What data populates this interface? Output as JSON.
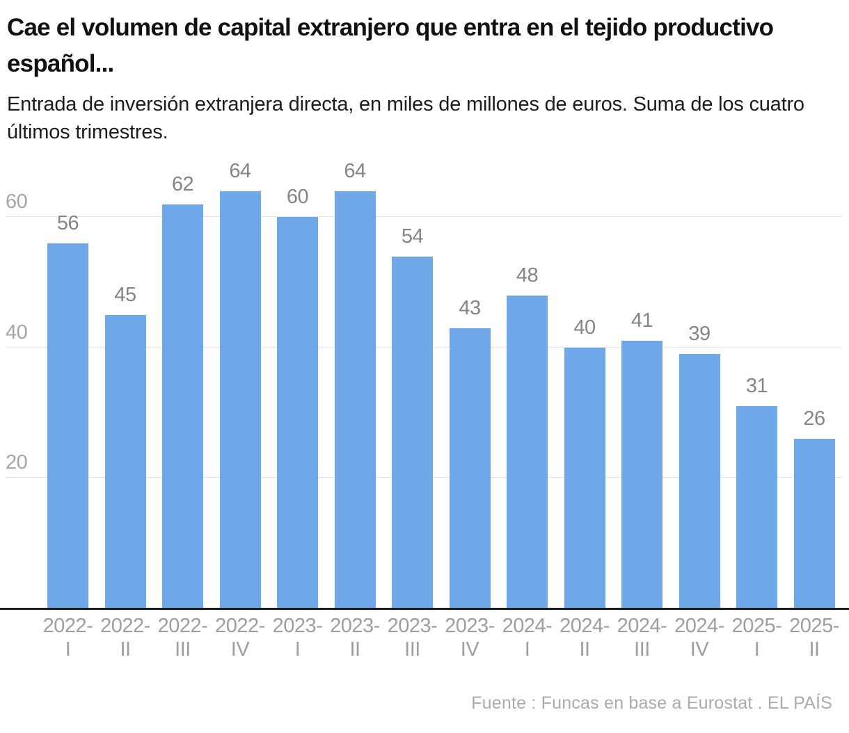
{
  "header": {
    "title": "Cae el volumen de capital extranjero que entra en el tejido productivo español...",
    "subtitle": "Entrada de inversión extranjera directa, en miles de millones de euros. Suma de los cuatro últimos trimestres."
  },
  "chart_data": {
    "type": "bar",
    "title": "Cae el volumen de capital extranjero que entra en el tejido productivo español...",
    "subtitle": "Entrada de inversión extranjera directa, en miles de millones de euros. Suma de los cuatro últimos trimestres.",
    "categories": [
      "2022-I",
      "2022-II",
      "2022-III",
      "2022-IV",
      "2023-I",
      "2023-II",
      "2023-III",
      "2023-IV",
      "2024-I",
      "2024-II",
      "2024-III",
      "2024-IV",
      "2025-I",
      "2025-II"
    ],
    "values": [
      56,
      45,
      62,
      64,
      60,
      64,
      54,
      43,
      48,
      40,
      41,
      39,
      31,
      26
    ],
    "value_labels": [
      56,
      45,
      62,
      64,
      60,
      64,
      54,
      43,
      48,
      40,
      41,
      39,
      31,
      26
    ],
    "xlabel": "",
    "ylabel": "",
    "ylim": [
      0,
      68
    ],
    "yticks": [
      20,
      40,
      60
    ],
    "grid": true,
    "legend": false,
    "bar_color": "#6fa8e9",
    "value_label_color": "#858585",
    "axis_label_color": "#9e9e9e",
    "gridline_color": "#e4e4e4",
    "axis_line_color": "#1d1d1d"
  },
  "footer": {
    "source": "Fuente : Funcas en base a Eurostat . EL PAÍS"
  }
}
